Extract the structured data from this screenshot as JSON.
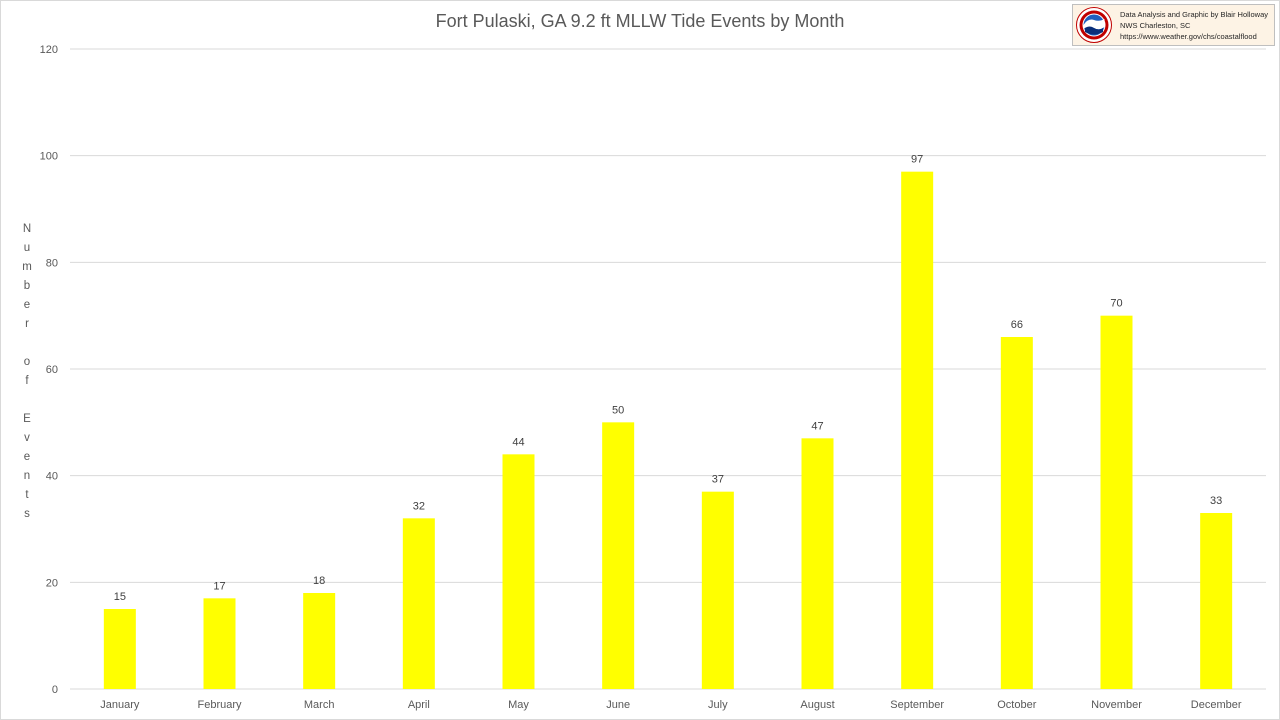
{
  "chart_data": {
    "type": "bar",
    "title": "Fort Pulaski, GA 9.2 ft MLLW Tide Events by Month",
    "xlabel": "",
    "ylabel": "Number of Events",
    "categories": [
      "January",
      "February",
      "March",
      "April",
      "May",
      "June",
      "July",
      "August",
      "September",
      "October",
      "November",
      "December"
    ],
    "values": [
      15,
      17,
      18,
      32,
      44,
      50,
      37,
      47,
      97,
      66,
      70,
      33
    ],
    "ylim": [
      0,
      120
    ],
    "yticks": [
      0,
      20,
      40,
      60,
      80,
      100,
      120
    ],
    "grid": "horizontal",
    "data_labels": true,
    "bar_color": "#ffff00",
    "legend": "none"
  },
  "credit": {
    "line1": "Data Analysis and Graphic by Blair Holloway",
    "line2": "NWS Charleston, SC",
    "line3": "https://www.weather.gov/chs/coastalflood",
    "logo": "noaa-nws-logo"
  },
  "colors": {
    "grid": "#d9d9d9",
    "text": "#595959",
    "bars": "#ffff00",
    "credit_bg": "#fdf3e5"
  }
}
